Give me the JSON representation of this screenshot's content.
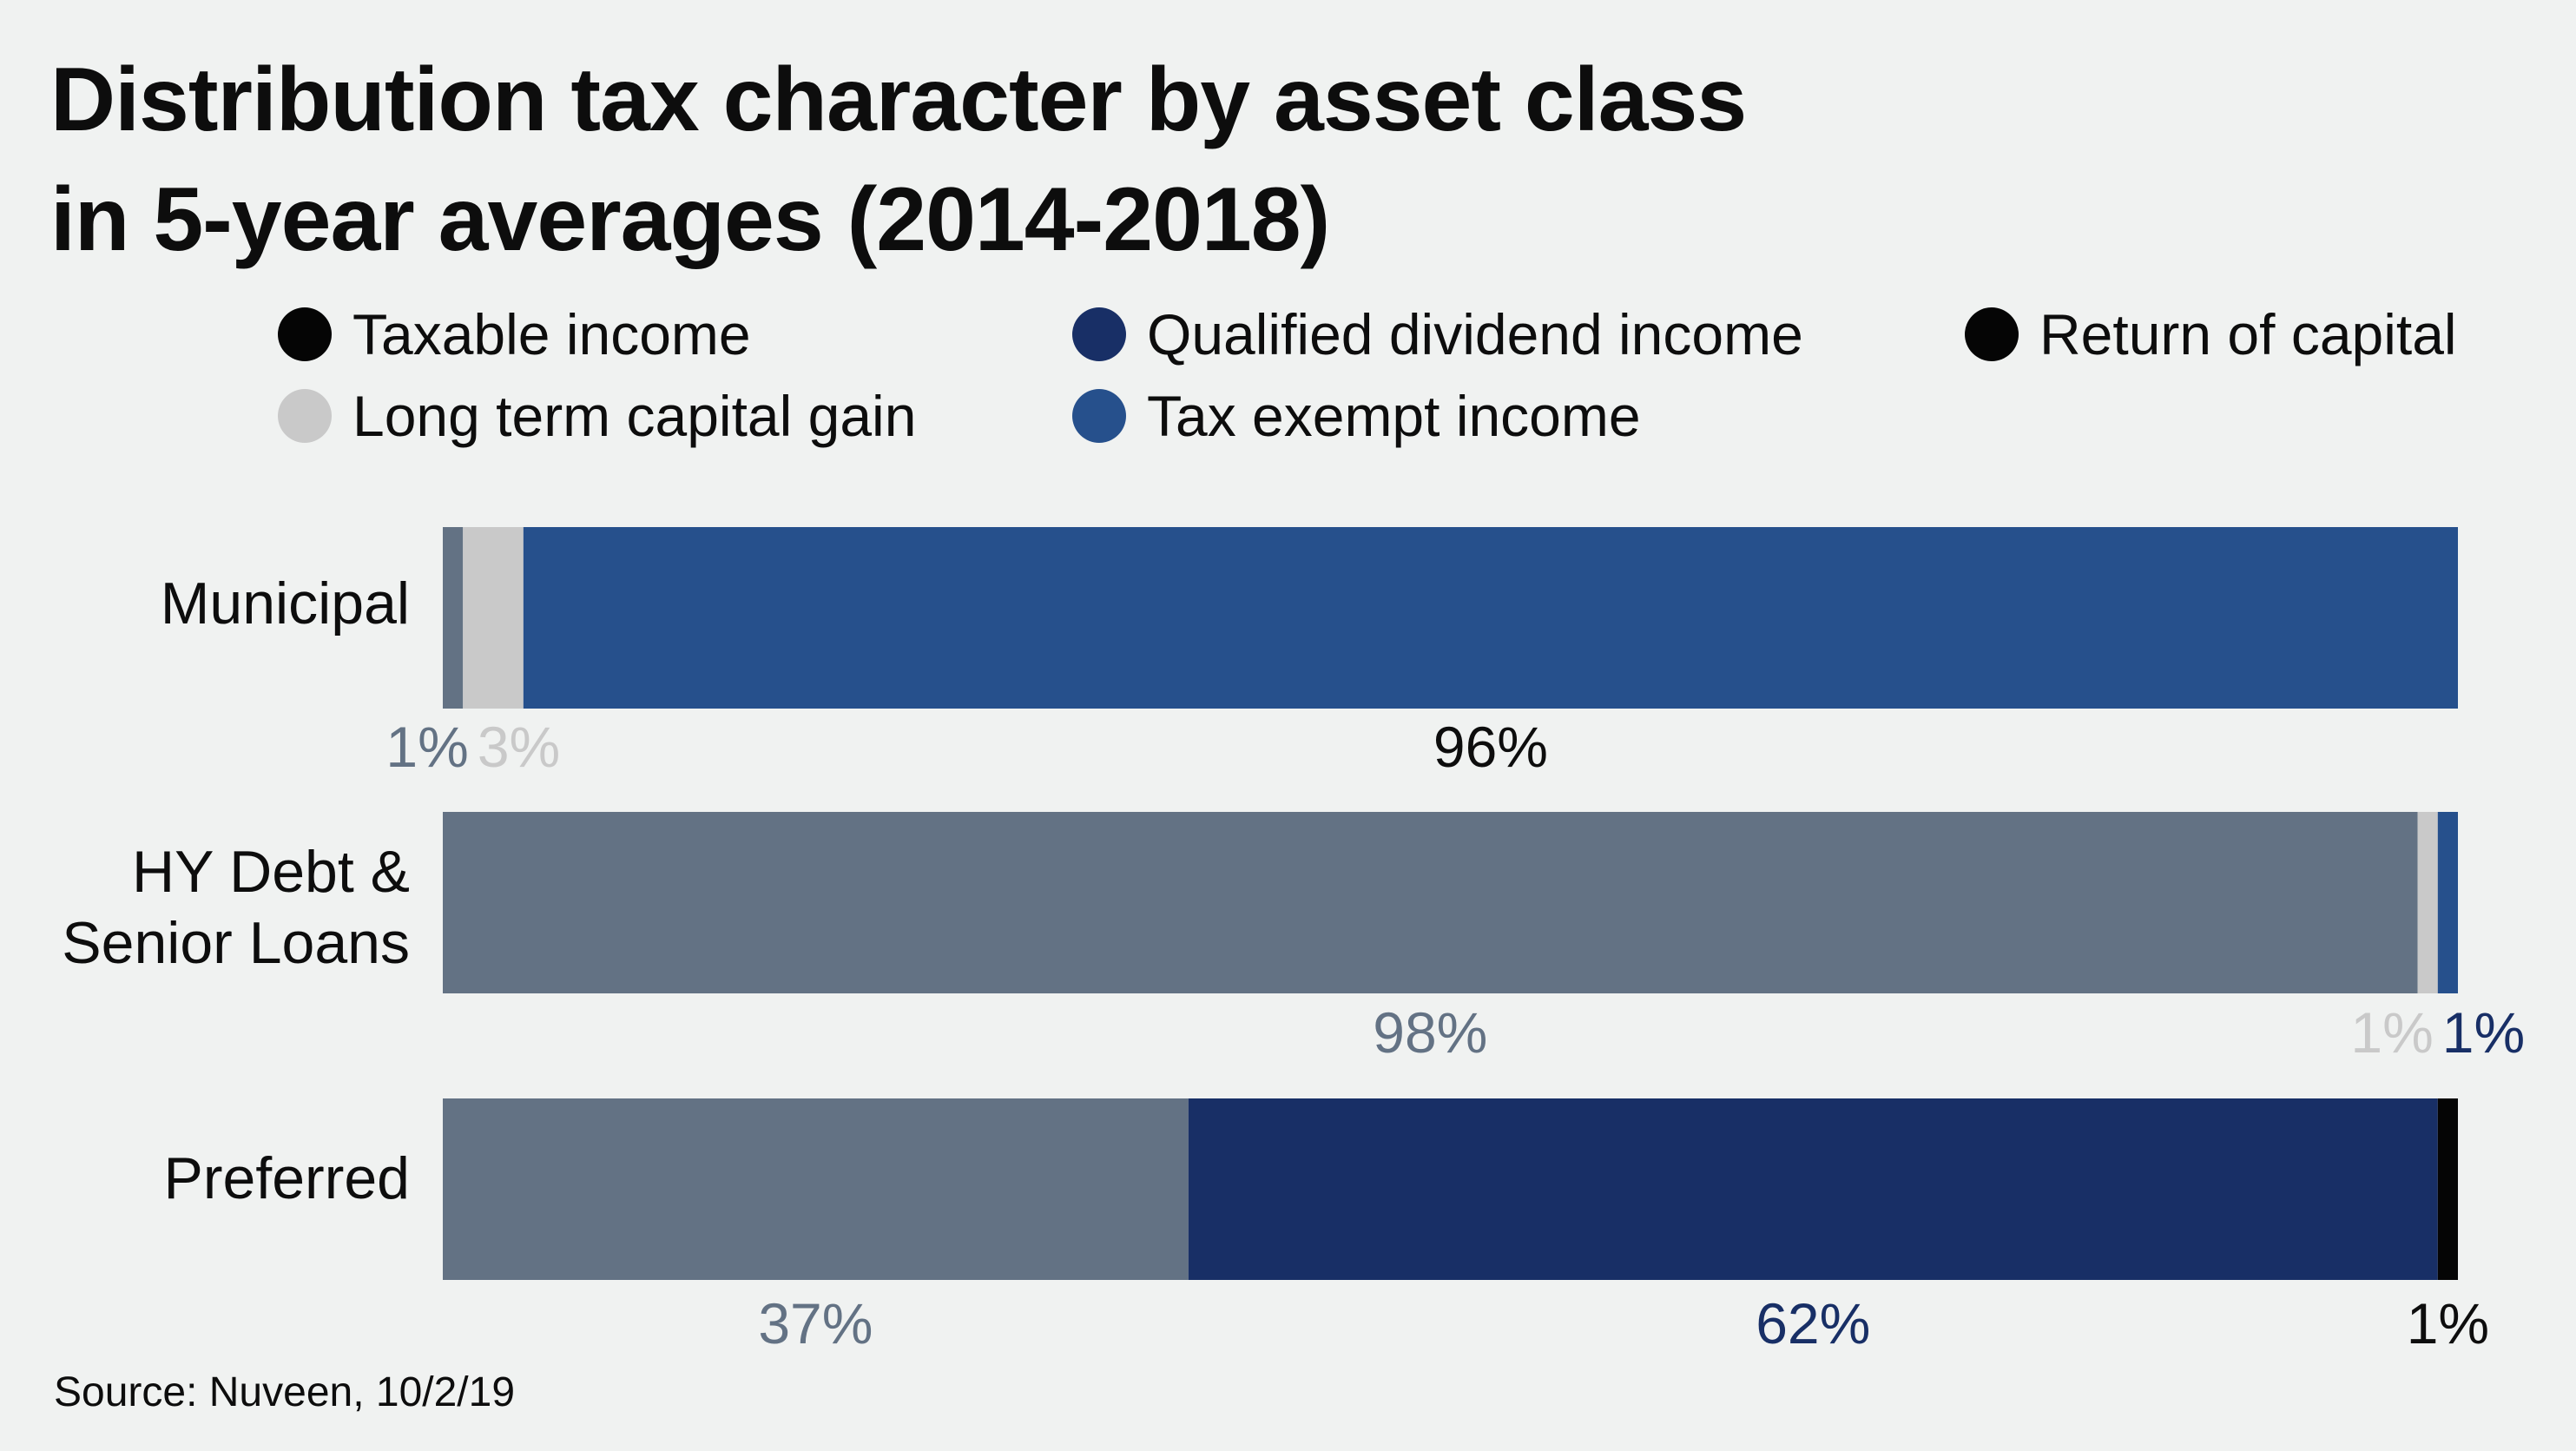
{
  "title_lines": [
    "Distribution tax character by asset class",
    "in 5-year averages (2014-2018)"
  ],
  "source": "Source: Nuveen, 10/2/19",
  "chart_data": {
    "type": "bar",
    "orientation": "horizontal",
    "stacked": true,
    "title": "Distribution tax character by asset class in 5-year averages (2014-2018)",
    "categories": [
      "Municipal",
      "HY Debt & Senior Loans",
      "Preferred"
    ],
    "category_label_lines": [
      [
        "Municipal"
      ],
      [
        "HY Debt &",
        "Senior Loans"
      ],
      [
        "Preferred"
      ]
    ],
    "xlim": [
      0,
      100
    ],
    "grid": false,
    "legend_position": "top",
    "series": [
      {
        "name": "Taxable income",
        "color": "#637284",
        "label_color": "#637284",
        "values": [
          1,
          98,
          37
        ]
      },
      {
        "name": "Long term capital gain",
        "color": "#c9c9c9",
        "label_color": "#c9c9c9",
        "values": [
          3,
          1,
          0
        ]
      },
      {
        "name": "Qualified dividend income",
        "color": "#182f66",
        "label_color": "#182f66",
        "values": [
          0,
          0,
          62
        ]
      },
      {
        "name": "Tax exempt income",
        "color": "#26508c",
        "label_color": "#0d0d0d",
        "values": [
          96,
          1,
          0
        ]
      },
      {
        "name": "Return of capital",
        "color": "#050505",
        "label_color": "#0d0d0d",
        "values": [
          0,
          0,
          1
        ]
      }
    ],
    "data_labels": [
      [
        {
          "text": "1%",
          "series": 0,
          "align": "segment-center"
        },
        {
          "text": "3%",
          "series": 1,
          "align": "segment-center"
        },
        {
          "text": "96%",
          "series": 3,
          "align": "segment-center"
        }
      ],
      [
        {
          "text": "98%",
          "series": 0,
          "align": "segment-center"
        },
        {
          "text": "1%",
          "series": 1,
          "align": "segment-center"
        },
        {
          "text": "1%",
          "series": 3,
          "align": "segment-center",
          "color_override": "#182f66"
        }
      ],
      [
        {
          "text": "37%",
          "series": 0,
          "align": "segment-center"
        },
        {
          "text": "62%",
          "series": 2,
          "align": "segment-center"
        },
        {
          "text": "1%",
          "series": 4,
          "align": "segment-center"
        }
      ]
    ],
    "legend_marker_colors": [
      "#050505",
      "#c9c9c9",
      "#182f66",
      "#26508c",
      "#050505"
    ]
  }
}
